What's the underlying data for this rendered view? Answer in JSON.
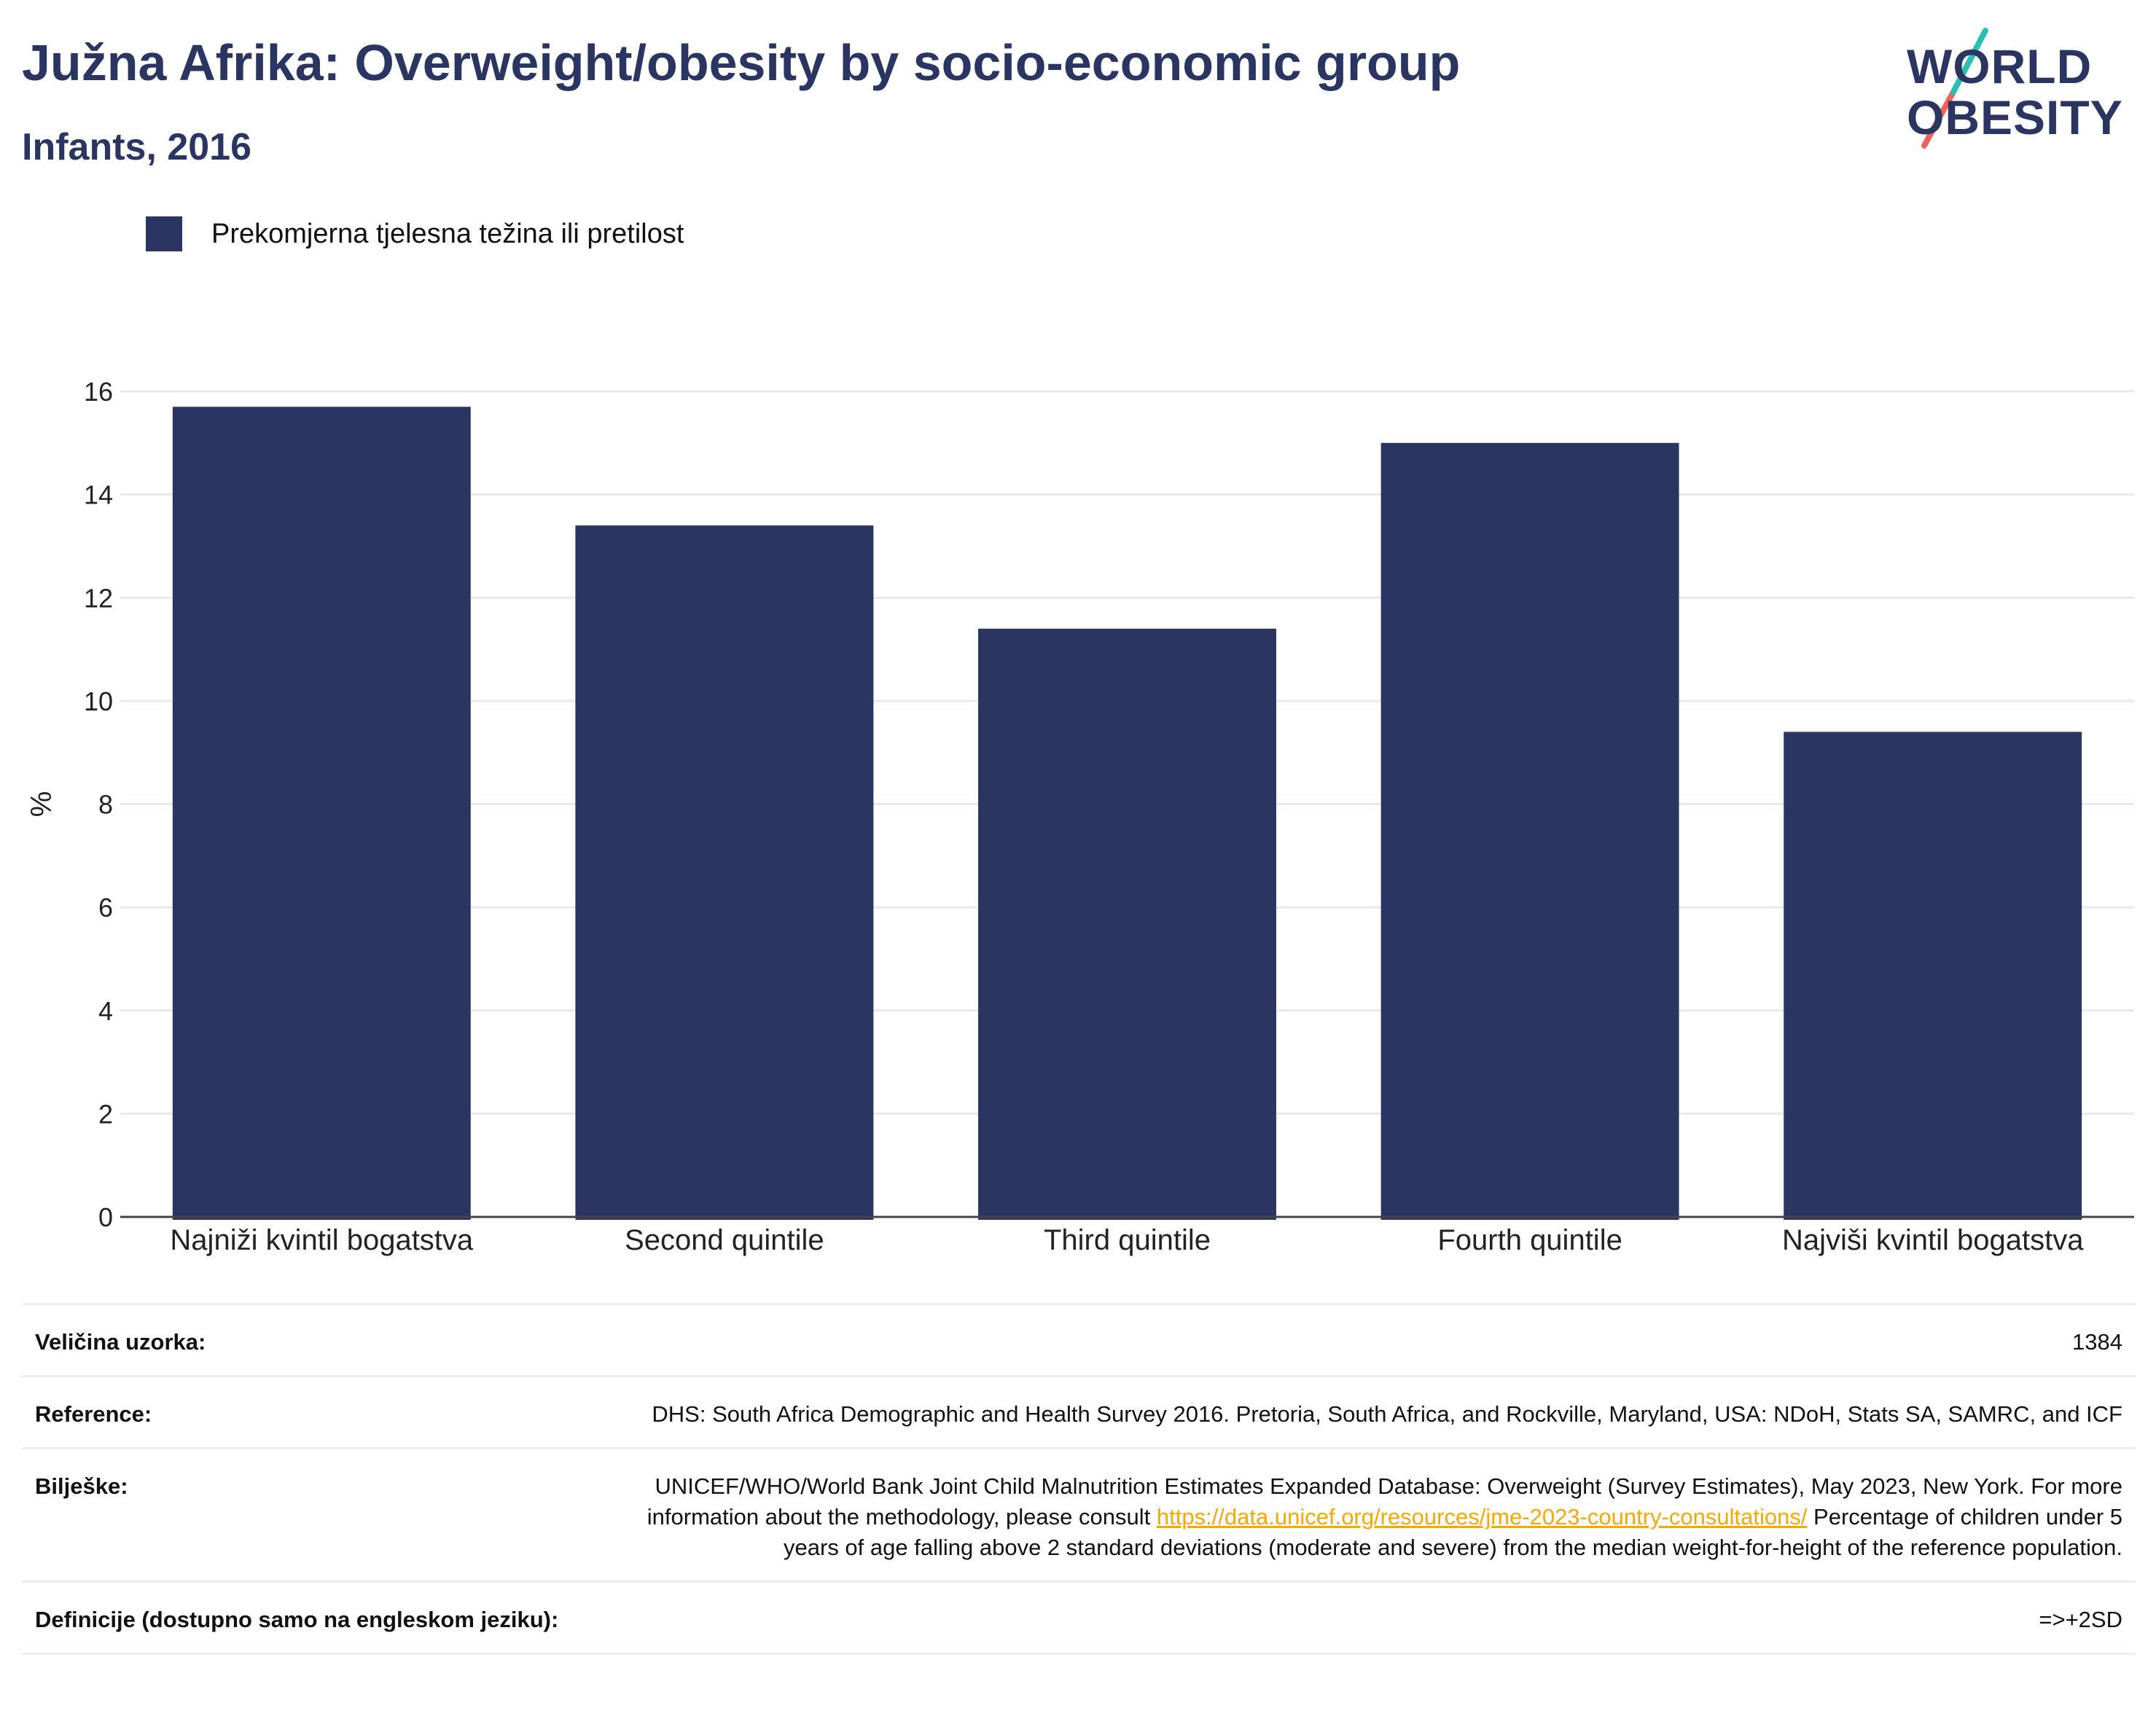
{
  "header": {
    "title": "Južna Afrika: Overweight/obesity by socio-economic group",
    "subtitle": "Infants, 2016",
    "logo_line1": "WORLD",
    "logo_line2": "OBESITY"
  },
  "colors": {
    "bar": "#2a3561",
    "title": "#2a3561",
    "grid": "#e6e9f1",
    "axis": "#444444",
    "link": "#f5a800",
    "logo_teal": "#2bbfb3",
    "logo_coral": "#f0625a"
  },
  "chart_data": {
    "type": "bar",
    "categories": [
      "Najniži kvintil bogatstva",
      "Second quintile",
      "Third quintile",
      "Fourth quintile",
      "Najviši kvintil bogatstva"
    ],
    "series": [
      {
        "name": "Prekomjerna tjelesna težina ili pretilost",
        "values": [
          15.7,
          13.4,
          11.4,
          15.0,
          9.4
        ]
      }
    ],
    "ylabel": "%",
    "xlabel": "",
    "ylim": [
      0,
      16
    ],
    "yticks": [
      0,
      2,
      4,
      6,
      8,
      10,
      12,
      14,
      16
    ],
    "grid": true,
    "legend_position": "top-left"
  },
  "info": {
    "sample_label": "Veličina uzorka:",
    "sample_value": "1384",
    "reference_label": "Reference:",
    "reference_value": "DHS: South Africa Demographic and Health Survey 2016. Pretoria, South Africa, and Rockville, Maryland, USA: NDoH, Stats SA, SAMRC, and ICF",
    "notes_label": "Bilješke:",
    "notes_before": "UNICEF/WHO/World Bank Joint Child Malnutrition Estimates Expanded Database: Overweight (Survey Estimates), May 2023, New York. For more information about the methodology, please consult ",
    "notes_link": "https://data.unicef.org/resources/jme-2023-country-consultations/",
    "notes_after": " Percentage of children under 5 years of age falling above 2 standard deviations (moderate and severe) from the median weight-for-height of the reference population.",
    "definitions_label": "Definicije (dostupno samo na engleskom jeziku):",
    "definitions_value": "=>+2SD"
  }
}
